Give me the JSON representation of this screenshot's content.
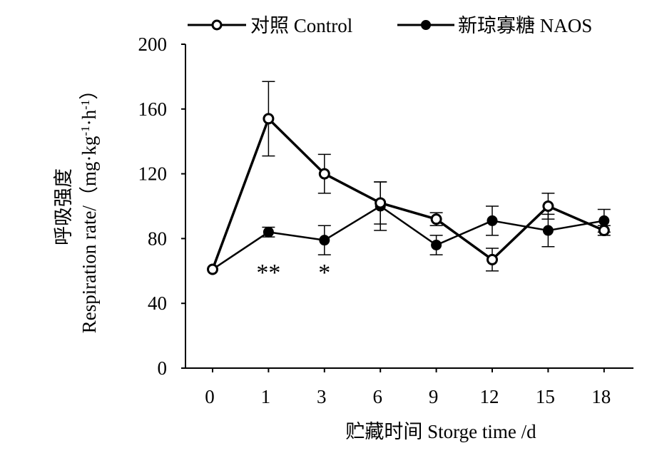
{
  "chart_data": {
    "type": "line",
    "categories": [
      "0",
      "1",
      "3",
      "6",
      "9",
      "12",
      "15",
      "18"
    ],
    "xlabel": "贮藏时间 Storge time /d",
    "ylabel_line1": "呼吸强度",
    "ylabel_line2_prefix": "Respiration rate/（mg·kg",
    "ylabel_sup1": "-1",
    "ylabel_mid": "·h",
    "ylabel_sup2": "-1",
    "ylabel_suffix": "）",
    "ylim": [
      0,
      200
    ],
    "yticks": [
      0,
      40,
      80,
      120,
      160,
      200
    ],
    "legend_position": "top",
    "series": [
      {
        "name": "对照 Control",
        "marker": "open-circle",
        "values": [
          61,
          154,
          120,
          102,
          92,
          67,
          100,
          85
        ],
        "errors": [
          0,
          23,
          12,
          13,
          4,
          7,
          8,
          3
        ]
      },
      {
        "name": "新琼寡糖 NAOS",
        "marker": "filled-circle",
        "values": [
          61,
          84,
          79,
          100,
          76,
          91,
          85,
          91
        ],
        "errors": [
          0,
          3,
          9,
          15,
          6,
          9,
          10,
          7
        ]
      }
    ],
    "annotations": [
      {
        "category": "1",
        "text": "**"
      },
      {
        "category": "3",
        "text": "*"
      }
    ]
  }
}
